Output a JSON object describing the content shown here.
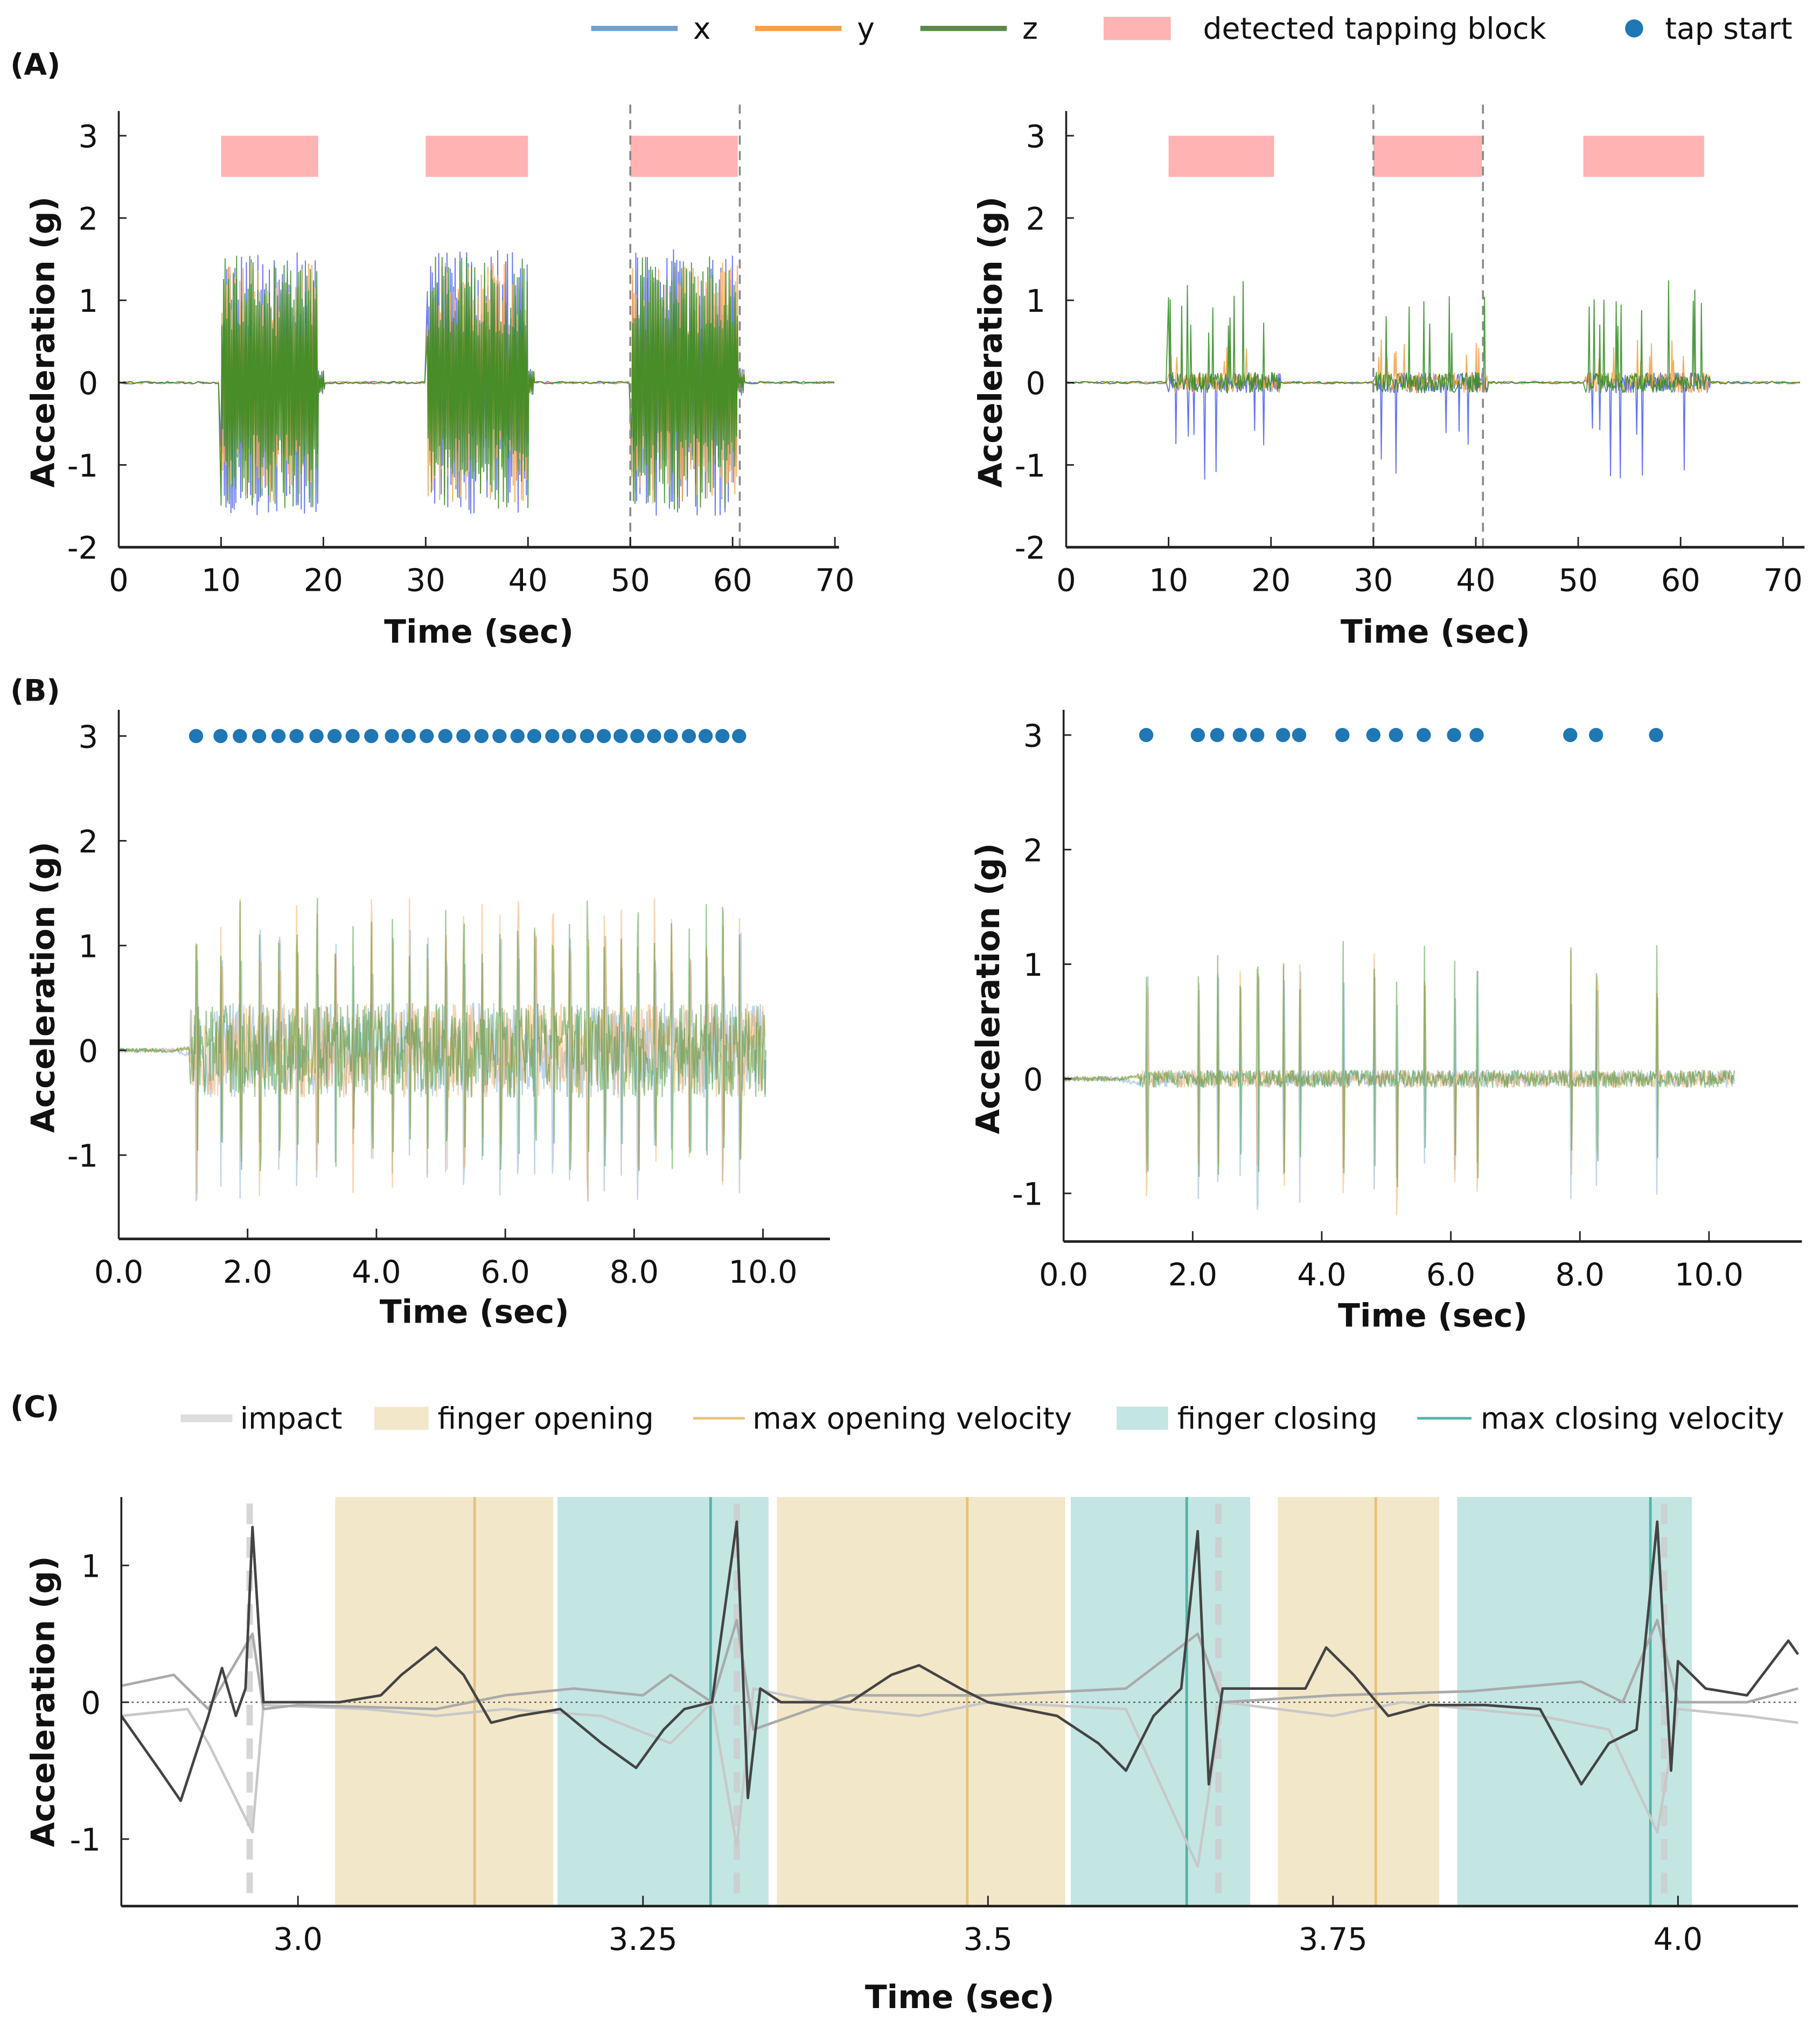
{
  "colors": {
    "x": "#4a5cf0",
    "y": "#f5a040",
    "z": "#2e8b1e",
    "x_legend": "#6fa0d0",
    "y_legend": "#f7a04a",
    "z_legend": "#5a8a4a",
    "block": "#ffb3b3",
    "tap": "#1f77b4",
    "opening": "#f3e7c9",
    "closing": "#c3e6e2",
    "open_vel": "#e6c27a",
    "close_vel": "#4db6a8",
    "impact": "#d8d8d8",
    "dark": "#444444",
    "light1": "#aaaaaa",
    "light2": "#c8c8c8"
  },
  "legend_top": {
    "x": "x",
    "y": "y",
    "z": "z",
    "block": "detected tapping block",
    "tap": "tap start"
  },
  "legend_c": {
    "impact": "impact",
    "opening": "finger opening",
    "max_open": "max opening velocity",
    "closing": "finger closing",
    "max_close": "max closing velocity"
  },
  "panel_labels": {
    "a": "(A)",
    "b": "(B)",
    "c": "(C)"
  },
  "chart_data": [
    {
      "id": "A-left",
      "type": "line",
      "xlabel": "Time (sec)",
      "ylabel": "Acceleration (g)",
      "xlim": [
        0,
        70.4
      ],
      "ylim": [
        -2,
        3.3
      ],
      "xticks": [
        0,
        10,
        20,
        30,
        40,
        50,
        60,
        70
      ],
      "xtick_labels": [
        "0",
        "10",
        "20",
        "30",
        "40",
        "50",
        "60",
        "70"
      ],
      "yticks": [
        3,
        2,
        1,
        0,
        -1,
        -2
      ],
      "ytick_labels": [
        "3",
        "2",
        "1",
        "0",
        "-1",
        "-2"
      ],
      "series": [
        "x",
        "y",
        "z"
      ],
      "blocks": [
        [
          10,
          19.5
        ],
        [
          30,
          40
        ],
        [
          50,
          60.5
        ]
      ],
      "dashed_lines": [
        50,
        60.7
      ],
      "amplitude": 1.4,
      "style": "dense"
    },
    {
      "id": "A-right",
      "type": "line",
      "xlabel": "Time (sec)",
      "ylabel": "Acceleration (g)",
      "xlim": [
        0,
        72.1
      ],
      "ylim": [
        -2,
        3.3
      ],
      "xticks": [
        0,
        10,
        20,
        30,
        40,
        50,
        60,
        70
      ],
      "xtick_labels": [
        "0",
        "10",
        "20",
        "30",
        "40",
        "50",
        "60",
        "70"
      ],
      "yticks": [
        3,
        2,
        1,
        0,
        -1,
        -2
      ],
      "ytick_labels": [
        "3",
        "2",
        "1",
        "0",
        "-1",
        "-2"
      ],
      "series": [
        "x",
        "y",
        "z"
      ],
      "blocks": [
        [
          10,
          20.3
        ],
        [
          30,
          40.6
        ],
        [
          50.5,
          62.3
        ]
      ],
      "dashed_lines": [
        30,
        40.7
      ],
      "amplitude": 1.2,
      "style": "sparse"
    },
    {
      "id": "B-left",
      "type": "line",
      "xlabel": "Time (sec)",
      "ylabel": "Acceleration (g)",
      "xlim": [
        0,
        11.04
      ],
      "ylim": [
        -1.8,
        3.25
      ],
      "xticks": [
        0,
        2,
        4,
        6,
        8,
        10
      ],
      "xtick_labels": [
        "0.0",
        "2.0",
        "4.0",
        "6.0",
        "8.0",
        "10.0"
      ],
      "yticks": [
        3,
        2,
        1,
        0,
        -1
      ],
      "ytick_labels": [
        "3",
        "2",
        "1",
        "0",
        "-1"
      ],
      "series": [
        "x",
        "y",
        "z"
      ],
      "end_time": 10.05,
      "amplitude": 1.45,
      "tap_starts": [
        1.2,
        1.58,
        1.88,
        2.18,
        2.48,
        2.76,
        3.07,
        3.35,
        3.63,
        3.92,
        4.24,
        4.5,
        4.78,
        5.07,
        5.35,
        5.63,
        5.91,
        6.19,
        6.45,
        6.73,
        6.99,
        7.27,
        7.53,
        7.79,
        8.05,
        8.31,
        8.57,
        8.85,
        9.11,
        9.37,
        9.63
      ]
    },
    {
      "id": "B-right",
      "type": "line",
      "xlabel": "Time (sec)",
      "ylabel": "Acceleration (g)",
      "xlim": [
        0,
        11.44
      ],
      "ylim": [
        -1.42,
        3.22
      ],
      "xticks": [
        0,
        2,
        4,
        6,
        8,
        10
      ],
      "xtick_labels": [
        "0.0",
        "2.0",
        "4.0",
        "6.0",
        "8.0",
        "10.0"
      ],
      "yticks": [
        3,
        2,
        1,
        0,
        -1
      ],
      "ytick_labels": [
        "3",
        "2",
        "1",
        "0",
        "-1"
      ],
      "series": [
        "x",
        "y",
        "z"
      ],
      "end_time": 10.4,
      "amplitude": 1.2,
      "tap_starts": [
        1.28,
        2.08,
        2.38,
        2.73,
        3.0,
        3.4,
        3.65,
        4.32,
        4.8,
        5.15,
        5.58,
        6.05,
        6.4,
        7.85,
        8.25,
        9.18
      ]
    },
    {
      "id": "C",
      "type": "line",
      "xlabel": "Time (sec)",
      "ylabel": "Acceleration (g)",
      "xlim": [
        2.872,
        4.087
      ],
      "ylim": [
        -1.49,
        1.5
      ],
      "xticks": [
        3.0,
        3.25,
        3.5,
        3.75,
        4.0
      ],
      "xtick_labels": [
        "3.0",
        "3.25",
        "3.5",
        "3.75",
        "4.0"
      ],
      "yticks": [
        1,
        0,
        -1
      ],
      "ytick_labels": [
        "1",
        "0",
        "-1"
      ],
      "finger_opening": [
        [
          3.027,
          3.185
        ],
        [
          3.347,
          3.556
        ],
        [
          3.71,
          3.827
        ]
      ],
      "max_opening_velocity": [
        3.128,
        3.485,
        3.781
      ],
      "finger_closing": [
        [
          3.188,
          3.341
        ],
        [
          3.56,
          3.69
        ],
        [
          3.84,
          4.01
        ]
      ],
      "max_closing_velocity": [
        3.299,
        3.644,
        3.98
      ],
      "impact": [
        2.965,
        3.318,
        3.667,
        3.99
      ],
      "dark_trace": [
        [
          2.872,
          -0.1
        ],
        [
          2.9,
          -0.5
        ],
        [
          2.915,
          -0.72
        ],
        [
          2.935,
          -0.1
        ],
        [
          2.945,
          0.25
        ],
        [
          2.955,
          -0.1
        ],
        [
          2.962,
          0.1
        ],
        [
          2.967,
          1.28
        ],
        [
          2.975,
          0.0
        ],
        [
          3.0,
          0.0
        ],
        [
          3.03,
          0.0
        ],
        [
          3.06,
          0.05
        ],
        [
          3.075,
          0.2
        ],
        [
          3.1,
          0.4
        ],
        [
          3.12,
          0.2
        ],
        [
          3.14,
          -0.15
        ],
        [
          3.16,
          -0.1
        ],
        [
          3.19,
          -0.05
        ],
        [
          3.22,
          -0.3
        ],
        [
          3.245,
          -0.48
        ],
        [
          3.265,
          -0.2
        ],
        [
          3.28,
          -0.05
        ],
        [
          3.3,
          0.0
        ],
        [
          3.318,
          1.32
        ],
        [
          3.326,
          -0.7
        ],
        [
          3.335,
          0.1
        ],
        [
          3.35,
          0
        ],
        [
          3.4,
          0
        ],
        [
          3.43,
          0.2
        ],
        [
          3.45,
          0.27
        ],
        [
          3.48,
          0.1
        ],
        [
          3.5,
          0
        ],
        [
          3.55,
          -0.1
        ],
        [
          3.58,
          -0.3
        ],
        [
          3.6,
          -0.5
        ],
        [
          3.62,
          -0.1
        ],
        [
          3.64,
          0.1
        ],
        [
          3.652,
          1.25
        ],
        [
          3.66,
          -0.6
        ],
        [
          3.67,
          0.1
        ],
        [
          3.7,
          0.1
        ],
        [
          3.73,
          0.1
        ],
        [
          3.745,
          0.4
        ],
        [
          3.765,
          0.2
        ],
        [
          3.79,
          -0.1
        ],
        [
          3.82,
          -0.02
        ],
        [
          3.86,
          -0.02
        ],
        [
          3.9,
          -0.05
        ],
        [
          3.93,
          -0.6
        ],
        [
          3.95,
          -0.3
        ],
        [
          3.97,
          -0.2
        ],
        [
          3.985,
          1.32
        ],
        [
          3.995,
          -0.5
        ],
        [
          4.0,
          0.3
        ],
        [
          4.02,
          0.1
        ],
        [
          4.05,
          0.05
        ],
        [
          4.08,
          0.45
        ],
        [
          4.087,
          0.35
        ]
      ],
      "light_trace_1": [
        [
          2.872,
          0.12
        ],
        [
          2.91,
          0.2
        ],
        [
          2.935,
          -0.05
        ],
        [
          2.967,
          0.5
        ],
        [
          2.975,
          -0.05
        ],
        [
          3.0,
          -0.02
        ],
        [
          3.1,
          -0.05
        ],
        [
          3.15,
          0.05
        ],
        [
          3.2,
          0.1
        ],
        [
          3.25,
          0.05
        ],
        [
          3.27,
          0.2
        ],
        [
          3.3,
          0.0
        ],
        [
          3.318,
          0.6
        ],
        [
          3.33,
          -0.2
        ],
        [
          3.4,
          0.05
        ],
        [
          3.5,
          0.05
        ],
        [
          3.6,
          0.1
        ],
        [
          3.652,
          0.5
        ],
        [
          3.67,
          0.0
        ],
        [
          3.75,
          0.05
        ],
        [
          3.85,
          0.08
        ],
        [
          3.93,
          0.15
        ],
        [
          3.96,
          0.0
        ],
        [
          3.985,
          0.6
        ],
        [
          4.0,
          0.0
        ],
        [
          4.05,
          0.0
        ],
        [
          4.087,
          0.1
        ]
      ],
      "light_trace_2": [
        [
          2.872,
          -0.1
        ],
        [
          2.92,
          -0.05
        ],
        [
          2.935,
          -0.3
        ],
        [
          2.967,
          -0.95
        ],
        [
          2.975,
          -0.02
        ],
        [
          3.05,
          -0.05
        ],
        [
          3.1,
          -0.1
        ],
        [
          3.15,
          -0.05
        ],
        [
          3.22,
          -0.1
        ],
        [
          3.27,
          -0.3
        ],
        [
          3.3,
          0.0
        ],
        [
          3.318,
          -1.05
        ],
        [
          3.33,
          0.1
        ],
        [
          3.4,
          -0.05
        ],
        [
          3.45,
          -0.1
        ],
        [
          3.5,
          0.0
        ],
        [
          3.6,
          -0.05
        ],
        [
          3.652,
          -1.2
        ],
        [
          3.67,
          0.0
        ],
        [
          3.75,
          -0.1
        ],
        [
          3.8,
          0.0
        ],
        [
          3.9,
          -0.1
        ],
        [
          3.95,
          -0.2
        ],
        [
          3.985,
          -0.95
        ],
        [
          4.0,
          -0.05
        ],
        [
          4.05,
          -0.1
        ],
        [
          4.087,
          -0.15
        ]
      ]
    }
  ]
}
